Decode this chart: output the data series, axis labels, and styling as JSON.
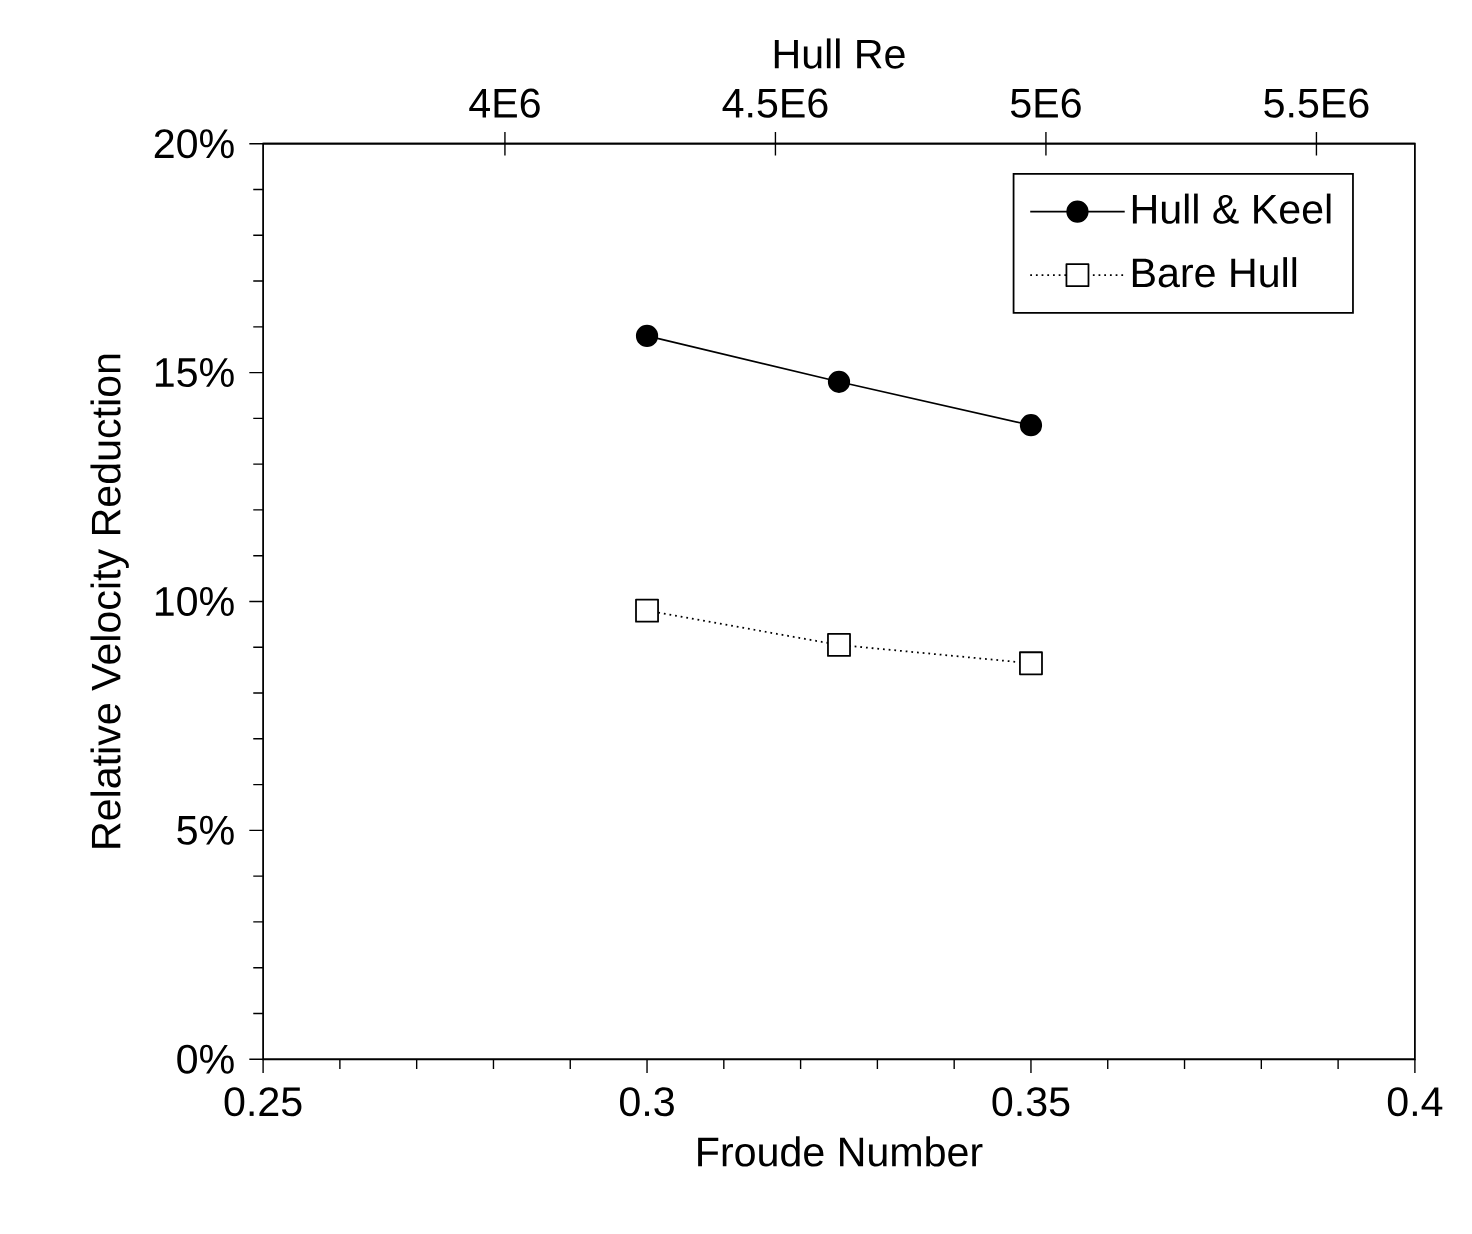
{
  "chart_data": {
    "type": "line",
    "xlabel": "Froude Number",
    "ylabel": "Relative Velocity Reduction",
    "x2label": "Hull Re",
    "x": [
      0.3,
      0.325,
      0.35
    ],
    "series": [
      {
        "name": "Hull & Keel",
        "color": "#000000",
        "values": [
          15.8,
          14.8,
          13.85
        ],
        "marker": "circle",
        "line_style": "solid"
      },
      {
        "name": "Bare Hull",
        "color": "#000000",
        "values": [
          9.8,
          9.05,
          8.65
        ],
        "marker": "square",
        "line_style": "dotted"
      }
    ],
    "xlim": [
      0.25,
      0.4
    ],
    "xticks": [
      0.25,
      0.3,
      0.35,
      0.4
    ],
    "ylim": [
      0,
      20
    ],
    "yticks": [
      {
        "value": 0,
        "label": "0%"
      },
      {
        "value": 5,
        "label": "5%"
      },
      {
        "value": 10,
        "label": "10%"
      },
      {
        "value": 15,
        "label": "15%"
      },
      {
        "value": 20,
        "label": "20%"
      }
    ],
    "x2lim": [
      3553000,
      5682000
    ],
    "x2ticks": [
      {
        "value": 4000000,
        "label": "4E6"
      },
      {
        "value": 4500000,
        "label": "4.5E6"
      },
      {
        "value": 5000000,
        "label": "5E6"
      },
      {
        "value": 5500000,
        "label": "5.5E6"
      }
    ],
    "legend": "top right",
    "grid": false
  }
}
